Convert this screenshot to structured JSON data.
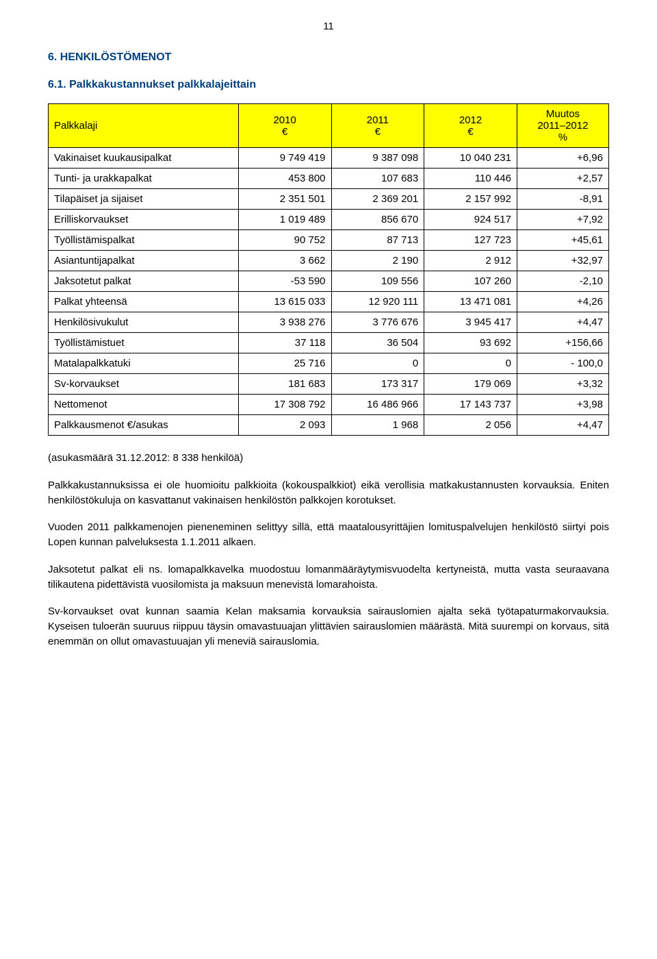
{
  "page_number": "11",
  "heading1": "6. HENKILÖSTÖMENOT",
  "heading2": "6.1. Palkkakustannukset palkkalajeittain",
  "table": {
    "headers": [
      "Palkkalaji",
      "2010\n€",
      "2011\n€",
      "2012\n€",
      "Muutos\n2011–2012\n%"
    ],
    "rows": [
      [
        "Vakinaiset kuukausipalkat",
        "9 749 419",
        "9 387 098",
        "10 040 231",
        "+6,96"
      ],
      [
        "Tunti- ja urakkapalkat",
        "453 800",
        "107 683",
        "110 446",
        "+2,57"
      ],
      [
        "Tilapäiset ja sijaiset",
        "2 351 501",
        "2 369 201",
        "2 157 992",
        "-8,91"
      ],
      [
        "Erilliskorvaukset",
        "1 019 489",
        "856 670",
        "924 517",
        "+7,92"
      ],
      [
        "Työllistämispalkat",
        "90 752",
        "87 713",
        "127 723",
        "+45,61"
      ],
      [
        "Asiantuntijapalkat",
        "3 662",
        "2 190",
        "2 912",
        "+32,97"
      ],
      [
        "Jaksotetut palkat",
        "-53 590",
        "109 556",
        "107 260",
        "-2,10"
      ],
      [
        "Palkat yhteensä",
        "13 615 033",
        "12 920 111",
        "13 471 081",
        "+4,26"
      ],
      [
        "Henkilösivukulut",
        "3 938 276",
        "3 776 676",
        "3 945 417",
        "+4,47"
      ],
      [
        "Työllistämistuet",
        "37 118",
        "36 504",
        "93 692",
        "+156,66"
      ],
      [
        "Matalapalkkatuki",
        "25 716",
        "0",
        "0",
        "- 100,0"
      ],
      [
        "Sv-korvaukset",
        "181 683",
        "173 317",
        "179 069",
        "+3,32"
      ],
      [
        "Nettomenot",
        "17 308 792",
        "16 486 966",
        "17 143 737",
        "+3,98"
      ],
      [
        "Palkkausmenot €/asukas",
        "2 093",
        "1 968",
        "2 056",
        "+4,47"
      ]
    ],
    "header_bg": "#ffff00",
    "border_color": "#000000",
    "fontsize": 15
  },
  "paragraphs": [
    "(asukasmäärä 31.12.2012: 8 338 henkilöä)",
    "Palkkakustannuksissa ei ole huomioitu palkkioita (kokouspalkkiot) eikä verollisia matka­kustannusten korvauksia. Eniten henkilöstökuluja on kasvattanut vakinaisen henkilöstön palkkojen korotukset.",
    "Vuoden 2011 palkkamenojen pieneneminen selittyy sillä, että maatalousyrittäjien lomituspalvelujen henkilöstö siirtyi pois Lopen kunnan palveluksesta 1.1.2011 alkaen.",
    "Jaksotetut palkat eli ns. lomapalkkavelka muodostuu lomanmääräytymisvuodelta kerty­neistä, mutta vasta seuraavana tilikautena pidettävistä vuosilomista ja maksuun mene­vistä lomarahoista.",
    "Sv-korvaukset ovat kunnan saamia Kelan maksamia korvauksia sairauslomien ajalta sekä työtapaturmakorvauksia. Kyseisen tuloerän suuruus riippuu täysin omavastuuajan ylittä­vien sairauslomien määrästä. Mitä suurempi on korvaus, sitä enemmän on ollut oma­vastuuajan yli meneviä sairauslomia."
  ],
  "colors": {
    "heading": "#004080",
    "text": "#000000",
    "background": "#ffffff"
  }
}
